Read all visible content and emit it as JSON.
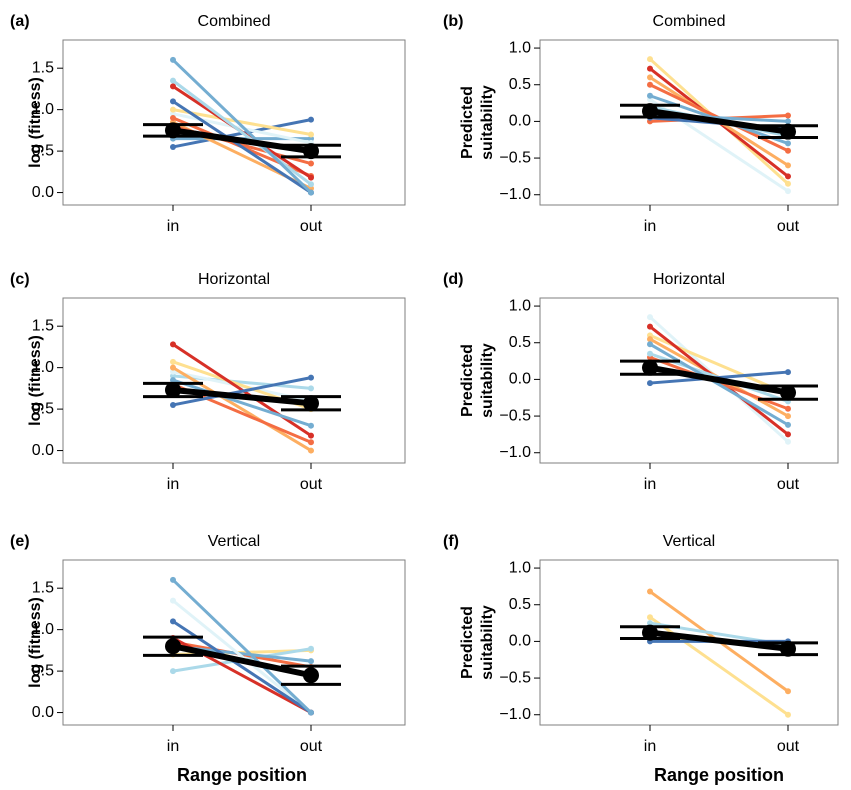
{
  "chart_data": [
    {
      "type": "line",
      "panel": "(a)",
      "title": "Combined",
      "y_label": [
        "log (fitness)"
      ],
      "categories": [
        "in",
        "out"
      ],
      "ylim": [
        -0.15,
        1.84
      ],
      "yticks": [
        {
          "value": 0,
          "label": "0.0"
        },
        {
          "value": 0.5,
          "label": "0.5"
        },
        {
          "value": 1,
          "label": "1.0"
        },
        {
          "value": 1.5,
          "label": "1.5"
        }
      ],
      "series": [
        {
          "color": "#4575b4",
          "values": [
            0.55,
            0.88
          ]
        },
        {
          "color": "#74add1",
          "values": [
            0.65,
            0.65
          ]
        },
        {
          "color": "#e0f3f8",
          "values": [
            0.95,
            0.6
          ]
        },
        {
          "color": "#fee090",
          "values": [
            1.0,
            0.7
          ]
        },
        {
          "color": "#fdae61",
          "values": [
            0.85,
            0.05
          ]
        },
        {
          "color": "#f46d43",
          "values": [
            0.8,
            0.35
          ]
        },
        {
          "color": "#f46d43",
          "values": [
            0.9,
            0.2
          ]
        },
        {
          "color": "#d73027",
          "values": [
            1.28,
            0.18
          ]
        },
        {
          "color": "#abd9e9",
          "values": [
            1.35,
            0.1
          ]
        },
        {
          "color": "#4575b4",
          "values": [
            1.1,
            0.0
          ]
        },
        {
          "color": "#74add1",
          "values": [
            1.6,
            0.0
          ]
        }
      ],
      "mean": {
        "color": "#000000",
        "values": [
          0.75,
          0.5
        ],
        "errors": [
          0.07,
          0.07
        ]
      }
    },
    {
      "type": "line",
      "panel": "(b)",
      "title": "Combined",
      "y_label": [
        "Predicted",
        "suitability"
      ],
      "categories": [
        "in",
        "out"
      ],
      "ylim": [
        -1.14,
        1.11
      ],
      "yticks": [
        {
          "value": -1,
          "label": "−1.0"
        },
        {
          "value": -0.5,
          "label": "−0.5"
        },
        {
          "value": 0,
          "label": "0.0"
        },
        {
          "value": 0.5,
          "label": "0.5"
        },
        {
          "value": 1,
          "label": "1.0"
        }
      ],
      "series": [
        {
          "color": "#e0f3f8",
          "values": [
            0.3,
            -0.95
          ]
        },
        {
          "color": "#fee090",
          "values": [
            0.85,
            -0.85
          ]
        },
        {
          "color": "#d73027",
          "values": [
            0.72,
            -0.75
          ]
        },
        {
          "color": "#fdae61",
          "values": [
            0.6,
            -0.6
          ]
        },
        {
          "color": "#f46d43",
          "values": [
            0.5,
            -0.4
          ]
        },
        {
          "color": "#f46d43",
          "values": [
            0.0,
            0.08
          ]
        },
        {
          "color": "#abd9e9",
          "values": [
            0.2,
            -0.2
          ]
        },
        {
          "color": "#74add1",
          "values": [
            0.35,
            -0.3
          ]
        },
        {
          "color": "#4575b4",
          "values": [
            0.05,
            -0.1
          ]
        },
        {
          "color": "#74add1",
          "values": [
            0.1,
            0.0
          ]
        }
      ],
      "mean": {
        "color": "#000000",
        "values": [
          0.14,
          -0.14
        ],
        "errors": [
          0.08,
          0.08
        ]
      }
    },
    {
      "type": "line",
      "panel": "(c)",
      "title": "Horizontal",
      "y_label": [
        "log (fitness)"
      ],
      "categories": [
        "in",
        "out"
      ],
      "ylim": [
        -0.15,
        1.84
      ],
      "yticks": [
        {
          "value": 0,
          "label": "0.0"
        },
        {
          "value": 0.5,
          "label": "0.5"
        },
        {
          "value": 1,
          "label": "1.0"
        },
        {
          "value": 1.5,
          "label": "1.5"
        }
      ],
      "series": [
        {
          "color": "#abd9e9",
          "values": [
            0.9,
            0.75
          ]
        },
        {
          "color": "#e0f3f8",
          "values": [
            0.95,
            0.6
          ]
        },
        {
          "color": "#fee090",
          "values": [
            1.07,
            0.5
          ]
        },
        {
          "color": "#fdae61",
          "values": [
            1.0,
            0.0
          ]
        },
        {
          "color": "#f46d43",
          "values": [
            0.8,
            0.1
          ]
        },
        {
          "color": "#d73027",
          "values": [
            1.28,
            0.18
          ]
        },
        {
          "color": "#74add1",
          "values": [
            0.85,
            0.3
          ]
        },
        {
          "color": "#4575b4",
          "values": [
            0.55,
            0.88
          ]
        }
      ],
      "mean": {
        "color": "#000000",
        "values": [
          0.73,
          0.57
        ],
        "errors": [
          0.08,
          0.08
        ]
      }
    },
    {
      "type": "line",
      "panel": "(d)",
      "title": "Horizontal",
      "y_label": [
        "Predicted",
        "suitability"
      ],
      "categories": [
        "in",
        "out"
      ],
      "ylim": [
        -1.14,
        1.11
      ],
      "yticks": [
        {
          "value": -1,
          "label": "−1.0"
        },
        {
          "value": -0.5,
          "label": "−0.5"
        },
        {
          "value": 0,
          "label": "0.0"
        },
        {
          "value": 0.5,
          "label": "0.5"
        },
        {
          "value": 1,
          "label": "1.0"
        }
      ],
      "series": [
        {
          "color": "#e0f3f8",
          "values": [
            0.85,
            -0.85
          ]
        },
        {
          "color": "#fee090",
          "values": [
            0.6,
            -0.2
          ]
        },
        {
          "color": "#fdae61",
          "values": [
            0.55,
            -0.5
          ]
        },
        {
          "color": "#d73027",
          "values": [
            0.72,
            -0.75
          ]
        },
        {
          "color": "#f46d43",
          "values": [
            0.3,
            -0.4
          ]
        },
        {
          "color": "#abd9e9",
          "values": [
            0.35,
            -0.3
          ]
        },
        {
          "color": "#74add1",
          "values": [
            0.48,
            -0.62
          ]
        },
        {
          "color": "#4575b4",
          "values": [
            -0.05,
            0.1
          ]
        }
      ],
      "mean": {
        "color": "#000000",
        "values": [
          0.16,
          -0.18
        ],
        "errors": [
          0.09,
          0.09
        ]
      }
    },
    {
      "type": "line",
      "panel": "(e)",
      "title": "Vertical",
      "y_label": [
        "log (fitness)"
      ],
      "x_label": "Range position",
      "categories": [
        "in",
        "out"
      ],
      "ylim": [
        -0.15,
        1.84
      ],
      "yticks": [
        {
          "value": 0,
          "label": "0.0"
        },
        {
          "value": 0.5,
          "label": "0.5"
        },
        {
          "value": 1,
          "label": "1.0"
        },
        {
          "value": 1.5,
          "label": "1.5"
        }
      ],
      "series": [
        {
          "color": "#fee090",
          "values": [
            0.7,
            0.75
          ]
        },
        {
          "color": "#abd9e9",
          "values": [
            0.5,
            0.77
          ]
        },
        {
          "color": "#f46d43",
          "values": [
            0.85,
            0.55
          ]
        },
        {
          "color": "#74add1",
          "values": [
            0.8,
            0.62
          ]
        },
        {
          "color": "#e0f3f8",
          "values": [
            1.35,
            0.0
          ]
        },
        {
          "color": "#d73027",
          "values": [
            0.9,
            0.0
          ]
        },
        {
          "color": "#4575b4",
          "values": [
            1.1,
            0.0
          ]
        },
        {
          "color": "#74add1",
          "values": [
            1.6,
            0.0
          ]
        }
      ],
      "mean": {
        "color": "#000000",
        "values": [
          0.8,
          0.45
        ],
        "errors": [
          0.11,
          0.11
        ]
      }
    },
    {
      "type": "line",
      "panel": "(f)",
      "title": "Vertical",
      "y_label": [
        "Predicted",
        "suitability"
      ],
      "x_label": "Range position",
      "categories": [
        "in",
        "out"
      ],
      "ylim": [
        -1.14,
        1.11
      ],
      "yticks": [
        {
          "value": -1,
          "label": "−1.0"
        },
        {
          "value": -0.5,
          "label": "−0.5"
        },
        {
          "value": 0,
          "label": "0.0"
        },
        {
          "value": 0.5,
          "label": "0.5"
        },
        {
          "value": 1,
          "label": "1.0"
        }
      ],
      "series": [
        {
          "color": "#fee090",
          "values": [
            0.33,
            -1.0
          ]
        },
        {
          "color": "#fdae61",
          "values": [
            0.68,
            -0.68
          ]
        },
        {
          "color": "#abd9e9",
          "values": [
            0.25,
            -0.05
          ]
        },
        {
          "color": "#74add1",
          "values": [
            0.1,
            -0.1
          ]
        },
        {
          "color": "#4575b4",
          "values": [
            0.0,
            0.0
          ]
        }
      ],
      "mean": {
        "color": "#000000",
        "values": [
          0.12,
          -0.1
        ],
        "errors": [
          0.08,
          0.08
        ]
      }
    }
  ]
}
